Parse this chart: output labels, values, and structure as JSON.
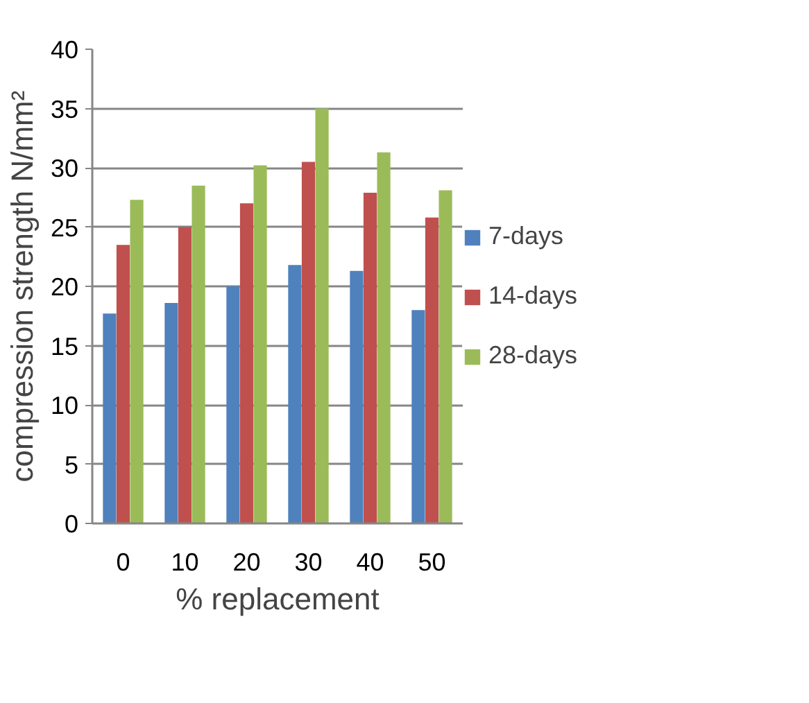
{
  "chart_data": {
    "type": "bar",
    "xlabel": "% replacement",
    "ylabel": "compression strength N/mm²",
    "categories": [
      "0",
      "10",
      "20",
      "30",
      "40",
      "50"
    ],
    "series": [
      {
        "name": "7-days",
        "color": "#4f81bd",
        "values": [
          17.7,
          18.6,
          20.0,
          21.8,
          21.3,
          18.0
        ]
      },
      {
        "name": "14-days",
        "color": "#c0504d",
        "values": [
          23.5,
          25.0,
          27.0,
          30.5,
          27.9,
          25.8
        ]
      },
      {
        "name": "28-days",
        "color": "#9bbb59",
        "values": [
          27.3,
          28.5,
          30.2,
          35.0,
          31.3,
          28.1
        ]
      }
    ],
    "ylim": [
      0,
      40
    ],
    "yticks": [
      0,
      5,
      10,
      15,
      20,
      25,
      30,
      35,
      40
    ],
    "grid": "y",
    "legend": "right"
  }
}
